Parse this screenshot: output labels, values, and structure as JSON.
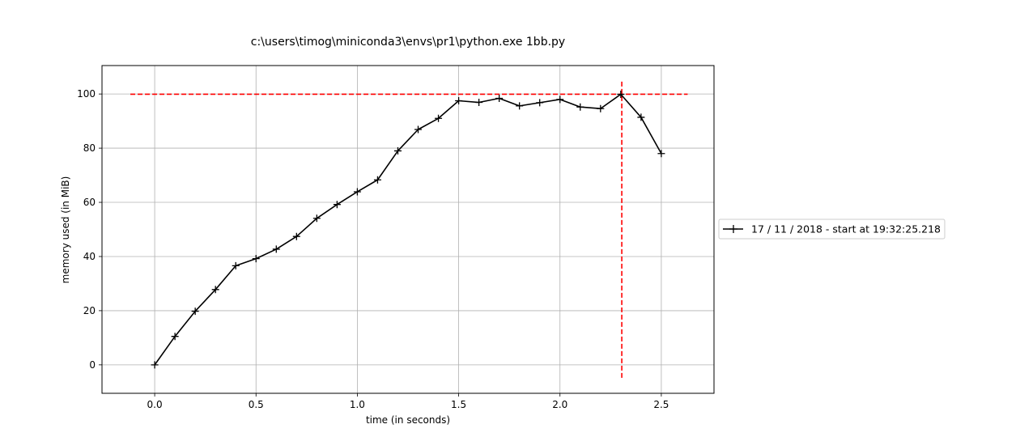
{
  "chart_data": {
    "type": "line",
    "title": "c:\\users\\timog\\miniconda3\\envs\\pr1\\python.exe 1bb.py",
    "xlabel": "time (in seconds)",
    "ylabel": "memory used (in MiB)",
    "xlim": [
      -0.26,
      2.76
    ],
    "ylim": [
      -10.5,
      110.5
    ],
    "xticks": [
      0.0,
      0.5,
      1.0,
      1.5,
      2.0,
      2.5
    ],
    "xtick_labels": [
      "0.0",
      "0.5",
      "1.0",
      "1.5",
      "2.0",
      "2.5"
    ],
    "yticks": [
      0,
      20,
      40,
      60,
      80,
      100
    ],
    "ytick_labels": [
      "0",
      "20",
      "40",
      "60",
      "80",
      "100"
    ],
    "grid": true,
    "legend_position": "right, outside plot",
    "series": [
      {
        "name": "17 / 11 / 2018 - start at 19:32:25.218",
        "color": "#000000",
        "marker": "plus",
        "x": [
          0.0,
          0.1,
          0.2,
          0.3,
          0.4,
          0.5,
          0.6,
          0.7,
          0.8,
          0.9,
          1.0,
          1.1,
          1.2,
          1.3,
          1.4,
          1.5,
          1.6,
          1.7,
          1.8,
          1.9,
          2.0,
          2.1,
          2.2,
          2.3,
          2.4,
          2.5
        ],
        "y": [
          0.0,
          10.5,
          19.8,
          27.8,
          36.6,
          39.2,
          42.7,
          47.4,
          54.1,
          59.2,
          63.9,
          68.3,
          79.0,
          86.9,
          91.0,
          97.5,
          96.9,
          98.4,
          95.6,
          96.8,
          98.0,
          95.2,
          94.6,
          99.9,
          91.4,
          78.0
        ]
      }
    ],
    "reference_lines": [
      {
        "orientation": "horizontal",
        "value": 99.9,
        "from": -0.12,
        "to": 2.63,
        "color": "#ff0000",
        "style": "dashed"
      },
      {
        "orientation": "vertical",
        "value": 2.305,
        "from": -4.8,
        "to": 105.2,
        "color": "#ff0000",
        "style": "dashed"
      }
    ]
  }
}
